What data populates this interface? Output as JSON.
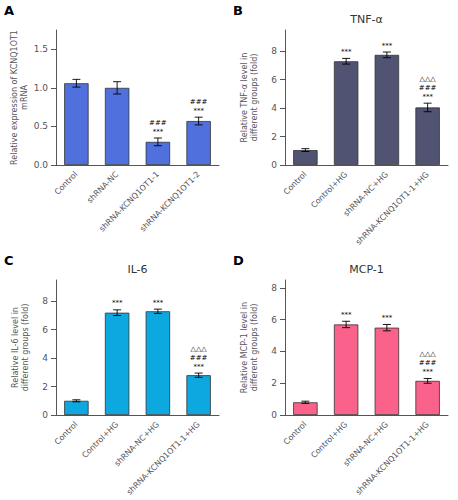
{
  "chart_data": [
    {
      "type": "bar",
      "panel_label": "A",
      "ylabel": "Relative expression of KCNQ1OT1\nmRNA",
      "categories": [
        "Control",
        "shRNA-NC",
        "shRNA-KCNQ1OT1-1",
        "shRNA-KCNQ1OT1-2"
      ],
      "values": [
        1.06,
        1.0,
        0.3,
        0.57
      ],
      "errors": [
        0.05,
        0.08,
        0.05,
        0.05
      ],
      "ylim": [
        0,
        1.75
      ],
      "yticks": [
        {
          "value": 0.0,
          "label": "0.0"
        },
        {
          "value": 0.5,
          "label": "0.5"
        },
        {
          "value": 1.0,
          "label": "1.0"
        },
        {
          "value": 1.5,
          "label": "1.5"
        }
      ],
      "annotations": [
        {
          "category": "shRNA-KCNQ1OT1-1",
          "lines": [
            "###",
            "***"
          ]
        },
        {
          "category": "shRNA-KCNQ1OT1-2",
          "lines": [
            "###",
            "***"
          ]
        }
      ],
      "grid": false
    },
    {
      "type": "bar",
      "panel_label": "B",
      "title": "TNF-α",
      "ylabel": "Relative TNF-α level in\ndifferent groups (fold)",
      "categories": [
        "Control",
        "Control+HG",
        "shRNA-NC+HG",
        "shRNA-KCNQ1OT1-1+HG"
      ],
      "values": [
        1.05,
        7.3,
        7.75,
        4.05
      ],
      "errors": [
        0.1,
        0.2,
        0.2,
        0.3
      ],
      "ylim": [
        0,
        9.5
      ],
      "yticks": [
        0,
        2,
        4,
        6,
        8
      ],
      "annotations": [
        {
          "category": "Control+HG",
          "lines": [
            "***"
          ]
        },
        {
          "category": "shRNA-NC+HG",
          "lines": [
            "***"
          ]
        },
        {
          "category": "shRNA-KCNQ1OT1-1+HG",
          "lines": [
            "△△△",
            "###",
            "***"
          ]
        }
      ],
      "grid": false
    },
    {
      "type": "bar",
      "panel_label": "C",
      "title": "IL-6",
      "ylabel": "Relative IL-6 level in\ndifferent groups (fold)",
      "categories": [
        "Control",
        "Control+HG",
        "shRNA-NC+HG",
        "shRNA-KCNQ1OT1-1+HG"
      ],
      "values": [
        1.0,
        7.2,
        7.3,
        2.8
      ],
      "errors": [
        0.07,
        0.2,
        0.15,
        0.15
      ],
      "ylim": [
        0,
        9.5
      ],
      "yticks": [
        0,
        2,
        4,
        6,
        8
      ],
      "annotations": [
        {
          "category": "Control+HG",
          "lines": [
            "***"
          ]
        },
        {
          "category": "shRNA-NC+HG",
          "lines": [
            "***"
          ]
        },
        {
          "category": "shRNA-KCNQ1OT1-1+HG",
          "lines": [
            "△△△",
            "###",
            "***"
          ]
        }
      ],
      "grid": false
    },
    {
      "type": "bar",
      "panel_label": "D",
      "title": "MCP-1",
      "ylabel": "Relative MCP-1 level in\ndifferent groups (fold)",
      "categories": [
        "Control",
        "Control+HG",
        "shRNA-NC+HG",
        "shRNA-KCNQ1OT1-1+HG"
      ],
      "values": [
        0.8,
        5.7,
        5.5,
        2.15
      ],
      "errors": [
        0.07,
        0.2,
        0.2,
        0.15
      ],
      "ylim": [
        0,
        8.5
      ],
      "yticks": [
        0,
        2,
        4,
        6,
        8
      ],
      "annotations": [
        {
          "category": "Control+HG",
          "lines": [
            "***"
          ]
        },
        {
          "category": "shRNA-NC+HG",
          "lines": [
            "***"
          ]
        },
        {
          "category": "shRNA-KCNQ1OT1-1+HG",
          "lines": [
            "△△△",
            "###",
            "***"
          ]
        }
      ],
      "grid": false
    }
  ]
}
